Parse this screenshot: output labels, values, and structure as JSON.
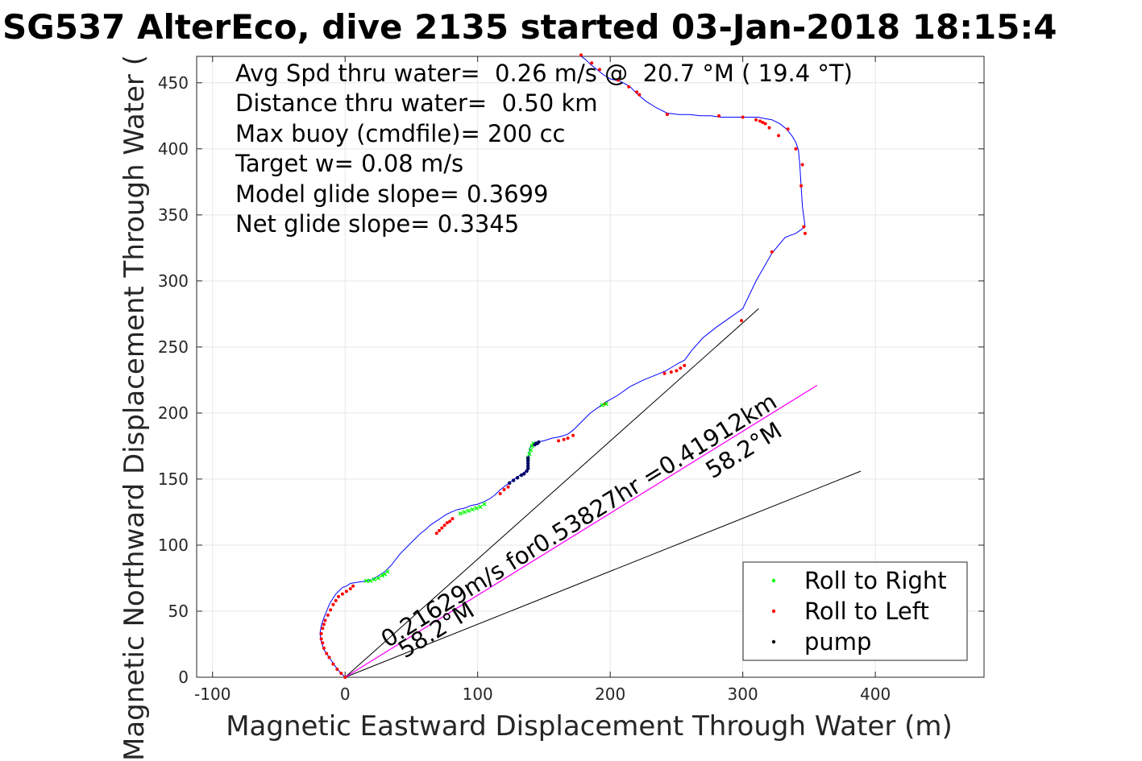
{
  "chart_data": {
    "type": "scatter",
    "title": "SG537 AlterEco, dive 2135 started 03-Jan-2018 18:15:4",
    "xlabel": "Magnetic Eastward Displacement Through Water (m)",
    "ylabel": "Magnetic Northward Displacement Through Water (",
    "xlim": [
      -112,
      482
    ],
    "ylim": [
      0,
      470
    ],
    "xticks": [
      -100,
      0,
      100,
      200,
      300,
      400
    ],
    "yticks": [
      0,
      50,
      100,
      150,
      200,
      250,
      300,
      350,
      400,
      450
    ],
    "grid": true,
    "legend_position": "bottom-right",
    "colors": {
      "track": "#0000ff",
      "roll_right": "#00ff00",
      "roll_left": "#ff0000",
      "pump": "#000000",
      "glide_line": "#000000",
      "mean_line": "#ff00ff",
      "grid": "#e6e6e6",
      "axis": "#262626"
    },
    "summary_lines": [
      "Avg Spd thru water=  0.26 m/s @  20.7 °M ( 19.4 °T)",
      "Distance thru water=  0.50 km",
      "Max buoy (cmdfile)= 200 cc",
      "Target w= 0.08 m/s",
      "Model glide slope= 0.3699",
      "Net glide slope= 0.3345"
    ],
    "legend": [
      {
        "label": "Roll to Right",
        "color": "#00ff00"
      },
      {
        "label": "Roll to Left",
        "color": "#ff0000"
      },
      {
        "label": "pump",
        "color": "#000000"
      }
    ],
    "series": [
      {
        "name": "track",
        "x": [
          0,
          -4,
          -8,
          -12,
          -16,
          -18,
          -19,
          -18,
          -16,
          -14,
          -12,
          -9,
          -7,
          -5,
          -2,
          1,
          4,
          10,
          17,
          20,
          24,
          27,
          30,
          32,
          35,
          38,
          42,
          47,
          52,
          57,
          61,
          64,
          67,
          70,
          73,
          76,
          80,
          85,
          90,
          95,
          100,
          105,
          109,
          113,
          117,
          121,
          125,
          129,
          132,
          135,
          137,
          138,
          138,
          138,
          139,
          139,
          140,
          142,
          145,
          150,
          156,
          162,
          168,
          172,
          178,
          185,
          192,
          196,
          205,
          215,
          225,
          235,
          242,
          247,
          252,
          256,
          262,
          270,
          280,
          290,
          300,
          310,
          322,
          332,
          340,
          347,
          345,
          344,
          343,
          342,
          340,
          337,
          333,
          328,
          322,
          316,
          312,
          308,
          303,
          297,
          290,
          283,
          276,
          268,
          260,
          252,
          243,
          235,
          227,
          221,
          218,
          215,
          208,
          200,
          195,
          190,
          185,
          181,
          178,
          177
        ],
        "y": [
          0,
          4,
          9,
          15,
          21,
          27,
          33,
          39,
          45,
          50,
          55,
          60,
          63,
          65,
          68,
          69,
          71,
          72,
          73,
          74,
          76,
          78,
          80,
          82,
          85,
          89,
          94,
          99,
          104,
          109,
          112,
          115,
          117,
          119,
          121,
          123,
          125,
          127,
          128,
          130,
          131,
          133,
          135,
          138,
          142,
          145,
          148,
          151,
          153,
          155,
          157,
          159,
          162,
          166,
          169,
          172,
          175,
          177,
          178,
          179,
          181,
          182,
          184,
          187,
          193,
          200,
          205,
          208,
          213,
          220,
          225,
          229,
          232,
          235,
          238,
          240,
          248,
          257,
          265,
          272,
          279,
          300,
          321,
          333,
          336,
          341,
          356,
          372,
          388,
          399,
          405,
          410,
          415,
          419,
          422,
          423,
          424,
          424,
          424,
          424,
          424,
          424,
          425,
          425,
          426,
          426,
          427,
          431,
          436,
          441,
          444,
          447,
          451,
          453,
          456,
          460,
          464,
          468,
          470,
          471
        ]
      },
      {
        "name": "Roll to Left",
        "x": [
          0,
          -3,
          -6,
          -9,
          -12,
          -14,
          -16,
          -17,
          -18,
          -18,
          -17,
          -16,
          -15,
          -13,
          -11,
          -9,
          -7,
          -5,
          -2,
          1,
          4,
          6,
          69,
          71,
          73,
          75,
          77,
          79,
          81,
          117,
          120,
          123,
          161,
          165,
          168,
          172,
          196,
          241,
          246,
          250,
          253,
          256,
          299,
          322,
          327,
          334,
          340,
          345,
          344,
          346,
          347,
          300,
          310,
          313,
          315,
          317,
          320,
          282,
          243,
          222,
          220,
          214,
          206,
          192,
          186,
          178
        ],
        "y": [
          0,
          3,
          6,
          10,
          15,
          18,
          22,
          26,
          29,
          33,
          37,
          40,
          43,
          47,
          51,
          55,
          58,
          61,
          63,
          65,
          67,
          69,
          109,
          111,
          113,
          115,
          117,
          118,
          120,
          139,
          142,
          144,
          179,
          180,
          181,
          183,
          207,
          230,
          231,
          232,
          234,
          236,
          270,
          322,
          410,
          415,
          400,
          388,
          372,
          341,
          336,
          424,
          422,
          421,
          420,
          419,
          416,
          425,
          426,
          441,
          443,
          447,
          452,
          460,
          465,
          471
        ]
      },
      {
        "name": "Roll to Right",
        "x": [
          16,
          19,
          22,
          25,
          28,
          30,
          32,
          87,
          90,
          93,
          96,
          99,
          102,
          105,
          138,
          139,
          140,
          141,
          142,
          194,
          197
        ],
        "y": [
          73,
          73,
          74,
          75,
          77,
          78,
          80,
          124,
          125,
          126,
          127,
          128,
          129,
          131,
          166,
          169,
          172,
          175,
          177,
          206,
          207
        ],
        "marker": "x"
      },
      {
        "name": "pump",
        "x": [
          124,
          127,
          130,
          133,
          135,
          137,
          138,
          138,
          138,
          138,
          138,
          143,
          144,
          145,
          146
        ],
        "y": [
          147,
          149,
          151,
          153,
          154,
          156,
          158,
          160,
          162,
          164,
          166,
          176,
          177,
          177,
          178
        ]
      },
      {
        "name": "model glide line",
        "x": [
          0,
          312
        ],
        "y": [
          0,
          279
        ]
      },
      {
        "name": "model glide line 2",
        "x": [
          0,
          389
        ],
        "y": [
          0,
          156
        ]
      },
      {
        "name": "mean velocity line",
        "x": [
          0,
          356
        ],
        "y": [
          0,
          221
        ]
      }
    ],
    "annotations": [
      {
        "text": "0.21629m/s for0.53827hr =0.41912km",
        "x": 32,
        "y": 22,
        "angle": -31.8
      },
      {
        "text": "58.2°M",
        "x": 45,
        "y": 14,
        "angle": -31.8
      },
      {
        "text": "58.2°M",
        "x": 277,
        "y": 150,
        "angle": -31.8
      }
    ]
  }
}
